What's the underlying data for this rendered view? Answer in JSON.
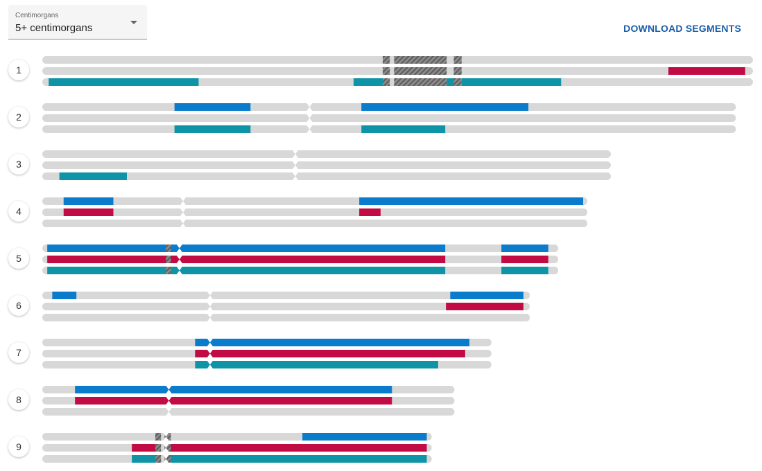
{
  "filter": {
    "label": "Centimorgans",
    "value": "5+ centimorgans",
    "icon": "chevron-down-icon"
  },
  "download_label": "DOWNLOAD SEGMENTS",
  "colors": {
    "track": "#d8d8d8",
    "blue": "#0a7ccb",
    "red": "#c20a45",
    "teal": "#0e94a6",
    "hatch_bg": "#8c8c8c",
    "hatch_line": "#5e5e5e"
  },
  "chromosomes": [
    {
      "number": "1",
      "length": 1.0,
      "centromere": null,
      "hatched": [
        [
          0.479,
          0.489
        ],
        [
          0.495,
          0.569
        ],
        [
          0.579,
          0.59
        ]
      ],
      "tracks": [
        {
          "segments": []
        },
        {
          "segments": [
            {
              "color": "red",
              "start": 0.881,
              "end": 0.989
            }
          ]
        },
        {
          "segments": [
            {
              "color": "teal",
              "start": 0.009,
              "end": 0.22
            },
            {
              "color": "teal",
              "start": 0.438,
              "end": 0.479
            },
            {
              "color": "teal",
              "start": 0.569,
              "end": 0.579
            },
            {
              "color": "teal",
              "start": 0.59,
              "end": 0.73
            }
          ]
        }
      ]
    },
    {
      "number": "2",
      "length": 0.976,
      "centromere": 0.376,
      "hatched": [],
      "tracks": [
        {
          "segments": [
            {
              "color": "blue",
              "start": 0.186,
              "end": 0.293
            },
            {
              "color": "blue",
              "start": 0.449,
              "end": 0.684
            }
          ]
        },
        {
          "segments": []
        },
        {
          "segments": [
            {
              "color": "teal",
              "start": 0.186,
              "end": 0.293
            },
            {
              "color": "teal",
              "start": 0.449,
              "end": 0.567
            }
          ]
        }
      ]
    },
    {
      "number": "3",
      "length": 0.8,
      "centromere": 0.356,
      "hatched": [],
      "tracks": [
        {
          "segments": []
        },
        {
          "segments": []
        },
        {
          "segments": [
            {
              "color": "teal",
              "start": 0.024,
              "end": 0.119
            }
          ]
        }
      ]
    },
    {
      "number": "4",
      "length": 0.767,
      "centromere": 0.198,
      "hatched": [],
      "tracks": [
        {
          "segments": [
            {
              "color": "blue",
              "start": 0.03,
              "end": 0.1
            },
            {
              "color": "blue",
              "start": 0.446,
              "end": 0.761
            }
          ]
        },
        {
          "segments": [
            {
              "color": "red",
              "start": 0.03,
              "end": 0.1
            },
            {
              "color": "red",
              "start": 0.446,
              "end": 0.476
            }
          ]
        },
        {
          "segments": []
        }
      ]
    },
    {
      "number": "5",
      "length": 0.726,
      "centromere": 0.193,
      "hatched": [
        [
          0.174,
          0.181
        ]
      ],
      "tracks": [
        {
          "segments": [
            {
              "color": "blue",
              "start": 0.007,
              "end": 0.567
            },
            {
              "color": "blue",
              "start": 0.646,
              "end": 0.712
            }
          ]
        },
        {
          "segments": [
            {
              "color": "red",
              "start": 0.007,
              "end": 0.567
            },
            {
              "color": "red",
              "start": 0.646,
              "end": 0.712
            }
          ]
        },
        {
          "segments": [
            {
              "color": "teal",
              "start": 0.007,
              "end": 0.567
            },
            {
              "color": "teal",
              "start": 0.646,
              "end": 0.712
            }
          ]
        }
      ]
    },
    {
      "number": "6",
      "length": 0.686,
      "centromere": 0.236,
      "hatched": [],
      "tracks": [
        {
          "segments": [
            {
              "color": "blue",
              "start": 0.014,
              "end": 0.048
            },
            {
              "color": "blue",
              "start": 0.574,
              "end": 0.677
            }
          ]
        },
        {
          "segments": [
            {
              "color": "red",
              "start": 0.568,
              "end": 0.677
            }
          ]
        },
        {
          "segments": []
        }
      ]
    },
    {
      "number": "7",
      "length": 0.632,
      "centromere": 0.236,
      "hatched": [],
      "tracks": [
        {
          "segments": [
            {
              "color": "blue",
              "start": 0.215,
              "end": 0.601
            }
          ]
        },
        {
          "segments": [
            {
              "color": "red",
              "start": 0.215,
              "end": 0.595
            }
          ]
        },
        {
          "segments": [
            {
              "color": "teal",
              "start": 0.215,
              "end": 0.557
            }
          ]
        }
      ]
    },
    {
      "number": "8",
      "length": 0.58,
      "centromere": 0.178,
      "hatched": [],
      "tracks": [
        {
          "segments": [
            {
              "color": "blue",
              "start": 0.046,
              "end": 0.492
            }
          ]
        },
        {
          "segments": [
            {
              "color": "red",
              "start": 0.046,
              "end": 0.492
            }
          ]
        },
        {
          "segments": []
        }
      ]
    },
    {
      "number": "9",
      "length": 0.548,
      "centromere": 0.174,
      "hatched": [
        [
          0.159,
          0.167
        ],
        [
          0.172,
          0.181
        ]
      ],
      "tracks": [
        {
          "segments": [
            {
              "color": "blue",
              "start": 0.366,
              "end": 0.541
            }
          ]
        },
        {
          "segments": [
            {
              "color": "red",
              "start": 0.126,
              "end": 0.159
            },
            {
              "color": "red",
              "start": 0.181,
              "end": 0.541
            }
          ]
        },
        {
          "segments": [
            {
              "color": "teal",
              "start": 0.126,
              "end": 0.159
            },
            {
              "color": "teal",
              "start": 0.181,
              "end": 0.541
            }
          ]
        }
      ]
    }
  ]
}
